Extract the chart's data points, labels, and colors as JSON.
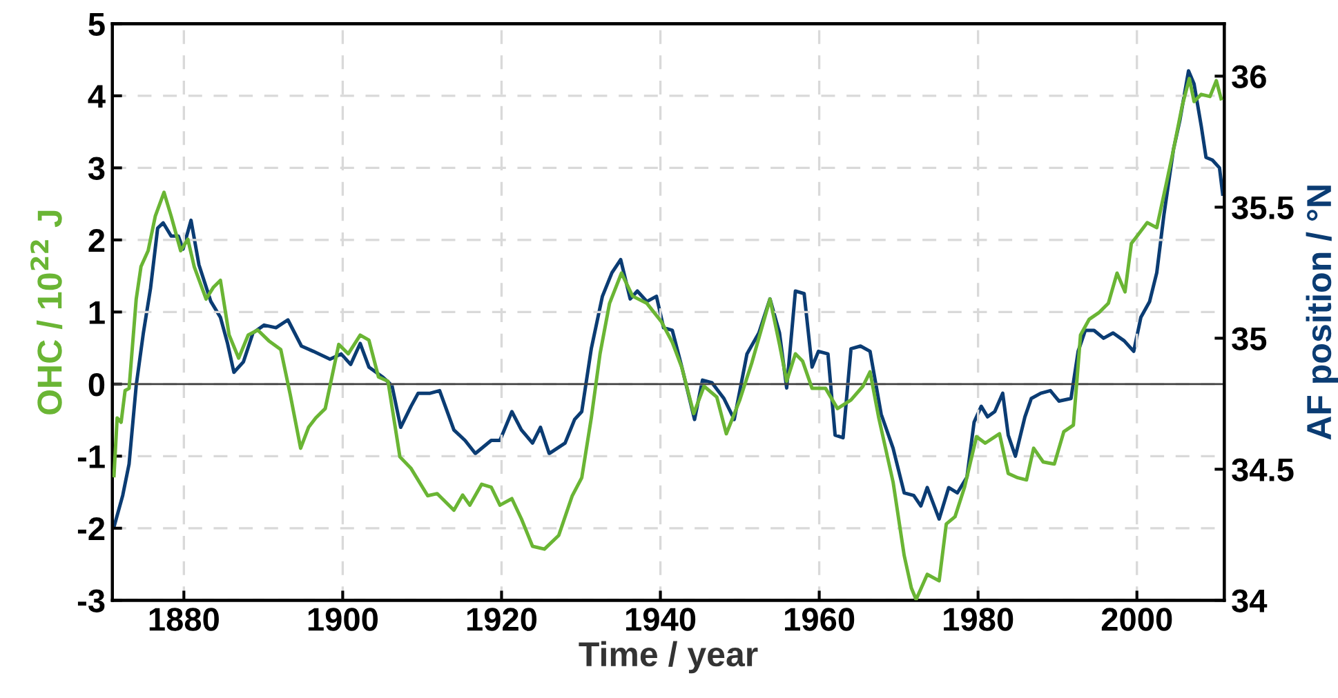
{
  "chart_data": {
    "type": "line",
    "xlabel": "Time / year",
    "ylabel": "OHC / 10$^{22}$ J",
    "y2label": "AF position / °N",
    "xlim": [
      1871,
      2011
    ],
    "xticks": [
      1880,
      1900,
      1920,
      1940,
      1960,
      1980,
      2000
    ],
    "ylim": [
      -3,
      5
    ],
    "yticks": [
      -3,
      -2,
      -1,
      0,
      1,
      2,
      3,
      4,
      5
    ],
    "y2lim": [
      34,
      36.2
    ],
    "y2ticks": [
      34,
      34.5,
      35,
      35.5,
      36
    ],
    "grid": true,
    "line_style": "solid",
    "marker": "none",
    "ref_lines": [
      {
        "axis": "y",
        "value": 0,
        "color": "#404040",
        "line_style": "solid"
      }
    ],
    "series": [
      {
        "color": "#6ab534",
        "x": [
          1871.2,
          1871.6,
          1872.1,
          1872.6,
          1873.1,
          1874.0,
          1874.6,
          1875.5,
          1876.4,
          1877.5,
          1878.4,
          1879.6,
          1880.5,
          1881.3,
          1882.8,
          1883.7,
          1884.6,
          1885.7,
          1886.9,
          1888.1,
          1889.3,
          1890.7,
          1892.2,
          1893.4,
          1894.7,
          1895.7,
          1896.6,
          1897.8,
          1899.5,
          1900.7,
          1902.2,
          1903.3,
          1904.5,
          1905.7,
          1907.2,
          1908.6,
          1910.7,
          1911.9,
          1914.0,
          1915.1,
          1916.0,
          1917.5,
          1918.7,
          1919.8,
          1921.3,
          1922.5,
          1923.9,
          1925.4,
          1927.2,
          1928.9,
          1930.1,
          1931.3,
          1932.4,
          1933.6,
          1935.1,
          1936.5,
          1938.3,
          1940.1,
          1941.5,
          1942.7,
          1944.2,
          1945.5,
          1947.1,
          1948.3,
          1950.0,
          1951.5,
          1953.8,
          1955.0,
          1955.9,
          1957.0,
          1957.9,
          1959.1,
          1960.8,
          1962.3,
          1964.0,
          1965.5,
          1966.4,
          1967.5,
          1969.3,
          1970.7,
          1971.6,
          1972.2,
          1973.6,
          1975.1,
          1976.0,
          1977.1,
          1978.3,
          1979.8,
          1980.9,
          1982.7,
          1983.8,
          1985.0,
          1986.1,
          1987.0,
          1988.2,
          1989.6,
          1990.8,
          1992.0,
          1992.9,
          1994.0,
          1995.2,
          1996.4,
          1997.5,
          1998.5,
          1999.3,
          2000.2,
          2001.3,
          2002.5,
          2003.7,
          2004.6,
          2005.7,
          2006.6,
          2007.2,
          2008.1,
          2009.2,
          2010.0,
          2010.6
        ],
        "values": [
          -1.27,
          -0.47,
          -0.53,
          -0.09,
          -0.06,
          1.18,
          1.63,
          1.85,
          2.33,
          2.66,
          2.33,
          1.85,
          2.01,
          1.63,
          1.18,
          1.34,
          1.44,
          0.68,
          0.36,
          0.68,
          0.75,
          0.6,
          0.48,
          -0.15,
          -0.89,
          -0.6,
          -0.47,
          -0.34,
          0.55,
          0.42,
          0.68,
          0.61,
          0.1,
          0.04,
          -1.01,
          -1.17,
          -1.55,
          -1.52,
          -1.75,
          -1.54,
          -1.68,
          -1.39,
          -1.43,
          -1.68,
          -1.59,
          -1.87,
          -2.25,
          -2.29,
          -2.1,
          -1.55,
          -1.3,
          -0.47,
          0.42,
          1.12,
          1.54,
          1.22,
          1.12,
          0.87,
          0.58,
          0.23,
          -0.41,
          -0.03,
          -0.18,
          -0.69,
          -0.22,
          0.29,
          1.18,
          0.55,
          0.04,
          0.42,
          0.32,
          -0.06,
          -0.06,
          -0.34,
          -0.22,
          -0.03,
          0.17,
          -0.47,
          -1.36,
          -2.38,
          -2.83,
          -2.99,
          -2.64,
          -2.73,
          -1.94,
          -1.84,
          -1.43,
          -0.73,
          -0.82,
          -0.69,
          -1.24,
          -1.3,
          -1.33,
          -0.89,
          -1.08,
          -1.11,
          -0.66,
          -0.57,
          0.68,
          0.9,
          0.99,
          1.12,
          1.54,
          1.28,
          1.95,
          2.08,
          2.24,
          2.17,
          2.78,
          3.25,
          3.86,
          4.24,
          3.92,
          4.02,
          3.99,
          4.21,
          3.96
        ]
      },
      {
        "color": "#0b3c73",
        "axis": "y2",
        "x": [
          1871.2,
          1872.3,
          1873.1,
          1874.0,
          1874.9,
          1875.8,
          1876.7,
          1877.4,
          1878.4,
          1879.3,
          1879.9,
          1880.9,
          1881.9,
          1883.4,
          1884.6,
          1885.5,
          1886.3,
          1887.5,
          1888.7,
          1890.1,
          1891.6,
          1893.1,
          1894.8,
          1896.3,
          1898.4,
          1899.8,
          1901.0,
          1902.2,
          1903.3,
          1905.1,
          1906.2,
          1907.3,
          1908.6,
          1909.5,
          1911.0,
          1912.2,
          1914.0,
          1915.4,
          1916.7,
          1918.7,
          1919.8,
          1921.3,
          1922.5,
          1923.9,
          1924.9,
          1926.0,
          1928.0,
          1929.2,
          1930.1,
          1931.3,
          1932.7,
          1933.9,
          1935.0,
          1936.2,
          1937.1,
          1938.3,
          1939.5,
          1940.4,
          1941.5,
          1942.7,
          1944.3,
          1945.3,
          1946.5,
          1948.0,
          1949.3,
          1950.9,
          1952.4,
          1953.8,
          1955.0,
          1955.9,
          1957.0,
          1958.1,
          1959.1,
          1959.9,
          1961.1,
          1962.0,
          1963.0,
          1964.0,
          1965.2,
          1966.4,
          1967.8,
          1969.3,
          1970.7,
          1971.9,
          1972.8,
          1973.6,
          1974.6,
          1975.1,
          1976.3,
          1977.4,
          1978.6,
          1979.5,
          1980.4,
          1981.2,
          1982.1,
          1983.1,
          1983.8,
          1984.7,
          1985.9,
          1986.7,
          1987.9,
          1989.1,
          1990.2,
          1991.7,
          1992.6,
          1993.5,
          1994.6,
          1995.8,
          1997.0,
          1998.4,
          1999.6,
          2000.5,
          2001.6,
          2002.5,
          2003.4,
          2004.6,
          2005.4,
          2006.5,
          2007.2,
          2008.1,
          2008.7,
          2009.5,
          2010.4,
          2010.8
        ],
        "values": [
          34.28,
          34.4,
          34.52,
          34.82,
          35.02,
          35.19,
          35.42,
          35.44,
          35.39,
          35.39,
          35.34,
          35.45,
          35.28,
          35.14,
          35.08,
          34.98,
          34.87,
          34.91,
          35.02,
          35.05,
          35.04,
          35.07,
          34.97,
          34.95,
          34.92,
          34.94,
          34.9,
          34.98,
          34.89,
          34.85,
          34.82,
          34.66,
          34.74,
          34.79,
          34.79,
          34.8,
          34.65,
          34.61,
          34.56,
          34.61,
          34.61,
          34.72,
          34.65,
          34.6,
          34.66,
          34.56,
          34.6,
          34.69,
          34.72,
          34.96,
          35.16,
          35.25,
          35.3,
          35.15,
          35.18,
          35.14,
          35.16,
          35.04,
          35.03,
          34.89,
          34.69,
          34.84,
          34.83,
          34.77,
          34.69,
          34.94,
          35.02,
          35.15,
          35.02,
          34.81,
          35.18,
          35.17,
          34.89,
          34.95,
          34.94,
          34.63,
          34.62,
          34.96,
          34.97,
          34.95,
          34.71,
          34.58,
          34.41,
          34.4,
          34.36,
          34.43,
          34.35,
          34.31,
          34.43,
          34.41,
          34.47,
          34.68,
          34.74,
          34.7,
          34.72,
          34.79,
          34.63,
          34.55,
          34.7,
          34.77,
          34.79,
          34.8,
          34.76,
          34.77,
          34.95,
          35.03,
          35.03,
          35.0,
          35.02,
          34.99,
          34.95,
          35.08,
          35.14,
          35.25,
          35.47,
          35.72,
          35.83,
          36.02,
          35.97,
          35.81,
          35.69,
          35.68,
          35.65,
          35.55
        ]
      }
    ]
  }
}
